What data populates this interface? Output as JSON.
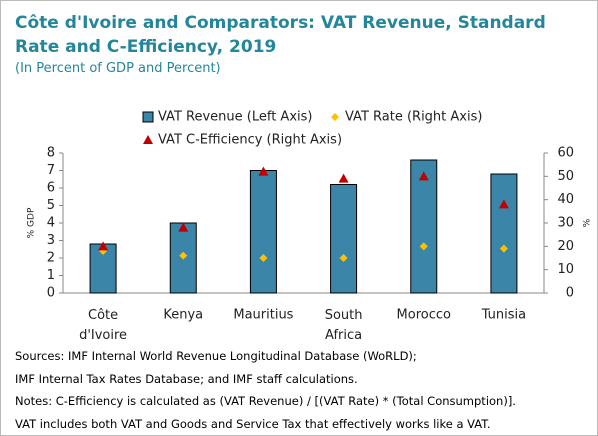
{
  "chart_data": {
    "type": "bar",
    "title": "Côte d'Ivoire and Comparators: VAT Revenue, Standard Rate and C-Efficiency, 2019",
    "subtitle": "(In Percent of GDP and Percent)",
    "y_label": "% GDP",
    "y2_label": "%",
    "categories": [
      "Côte d'Ivoire",
      "Kenya",
      "Mauritius",
      "South Africa",
      "Morocco",
      "Tunisia"
    ],
    "series": [
      {
        "name": "VAT Revenue (Left Axis)",
        "type": "bar",
        "color": "#3b86a8",
        "values": [
          2.8,
          4.0,
          7.0,
          6.2,
          7.6,
          6.8
        ]
      },
      {
        "name": "VAT Rate (Right Axis)",
        "type": "diamond",
        "axis": "y2",
        "color": "#ffc000",
        "values": [
          18,
          16,
          15,
          15,
          20,
          19
        ]
      },
      {
        "name": "VAT C-Efficiency (Right Axis)",
        "type": "triangle",
        "axis": "y2",
        "color": "#c00000",
        "values": [
          20,
          28,
          52,
          49,
          50,
          38
        ]
      }
    ],
    "ylim": [
      0,
      8
    ],
    "yticks": [
      0,
      1,
      2,
      3,
      4,
      5,
      6,
      7,
      8
    ],
    "y2lim": [
      0,
      60
    ],
    "y2ticks": [
      0,
      10,
      20,
      30,
      40,
      50,
      60
    ],
    "notes": [
      "Sources: IMF Internal World Revenue Longitudinal Database (WoRLD);",
      "IMF Internal Tax Rates Database; and IMF staff calculations.",
      "Notes: C-Efficiency is calculated as (VAT Revenue) / [(VAT Rate) * (Total Consumption)].",
      "VAT includes both VAT and Goods and Service Tax that effectively works like a VAT."
    ]
  }
}
